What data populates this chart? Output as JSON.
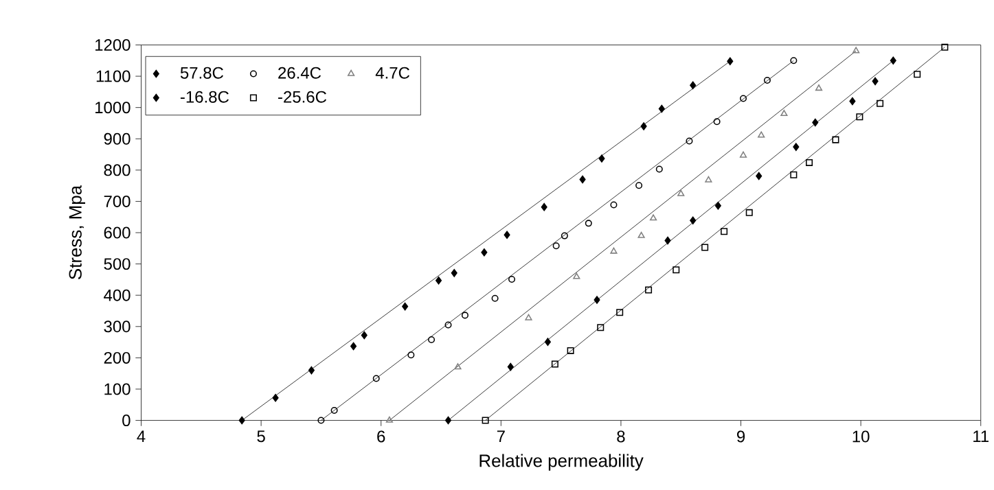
{
  "chart_data": {
    "type": "scatter",
    "xlabel": "Relative permeability",
    "ylabel": "Stress, Mpa",
    "xlim": [
      4,
      11
    ],
    "ylim": [
      0,
      1200
    ],
    "xticks": [
      4,
      5,
      6,
      7,
      8,
      9,
      10,
      11
    ],
    "yticks": [
      0,
      100,
      200,
      300,
      400,
      500,
      600,
      700,
      800,
      900,
      1000,
      1100,
      1200
    ],
    "legend": "top left",
    "series": [
      {
        "name": "57.8C",
        "color": "#000000",
        "marker": "diamond",
        "x": [
          4.84,
          5.12,
          5.42,
          5.77,
          5.86,
          6.2,
          6.48,
          6.61,
          6.86,
          7.05,
          7.36,
          7.68,
          7.84,
          8.19,
          8.34,
          8.6,
          8.91
        ],
        "values": [
          0,
          72,
          160,
          237,
          272,
          364,
          447,
          471,
          537,
          593,
          682,
          770,
          837,
          940,
          996,
          1071,
          1148
        ]
      },
      {
        "name": "26.4C",
        "color": "#000000",
        "marker": "circle",
        "x": [
          5.5,
          5.61,
          5.96,
          6.25,
          6.42,
          6.56,
          6.7,
          6.95,
          7.09,
          7.46,
          7.53,
          7.73,
          7.94,
          8.15,
          8.32,
          8.57,
          8.8,
          9.02,
          9.22,
          9.44
        ],
        "values": [
          0,
          32,
          134,
          209,
          258,
          305,
          336,
          390,
          451,
          558,
          590,
          630,
          689,
          751,
          803,
          893,
          955,
          1029,
          1087,
          1150
        ]
      },
      {
        "name": "4.7C",
        "color": "#808080",
        "marker": "triangle",
        "x": [
          6.07,
          6.64,
          7.23,
          7.63,
          7.94,
          8.17,
          8.27,
          8.5,
          8.73,
          9.02,
          9.17,
          9.36,
          9.65,
          9.96
        ],
        "values": [
          0,
          170,
          327,
          459,
          540,
          590,
          646,
          724,
          768,
          847,
          911,
          980,
          1061,
          1181
        ]
      },
      {
        "name": "-16.8C",
        "color": "#000000",
        "marker": "diamond",
        "x": [
          6.56,
          7.08,
          7.39,
          7.8,
          8.39,
          8.6,
          8.81,
          9.15,
          9.46,
          9.62,
          9.93,
          10.12,
          10.27
        ],
        "values": [
          0,
          171,
          251,
          385,
          575,
          639,
          686,
          781,
          874,
          952,
          1020,
          1084,
          1150
        ]
      },
      {
        "name": "-25.6C",
        "color": "#000000",
        "marker": "square",
        "x": [
          6.87,
          7.45,
          7.58,
          7.83,
          7.99,
          8.23,
          8.46,
          8.7,
          8.86,
          9.07,
          9.44,
          9.57,
          9.79,
          9.99,
          10.16,
          10.47,
          10.7
        ],
        "values": [
          0,
          180,
          223,
          297,
          345,
          417,
          481,
          553,
          604,
          664,
          785,
          824,
          897,
          970,
          1013,
          1106,
          1193
        ]
      },
      {
        "type": "line",
        "color": "#000000",
        "x": [
          4.84,
          8.91
        ],
        "values": [
          0,
          1148
        ]
      },
      {
        "type": "line",
        "color": "#000000",
        "x": [
          5.5,
          9.44
        ],
        "values": [
          0,
          1150
        ]
      },
      {
        "type": "line",
        "color": "#000000",
        "x": [
          6.07,
          9.96
        ],
        "values": [
          0,
          1181
        ]
      },
      {
        "type": "line",
        "color": "#000000",
        "x": [
          6.56,
          10.27
        ],
        "values": [
          0,
          1150
        ]
      },
      {
        "type": "line",
        "color": "#000000",
        "x": [
          6.87,
          10.7
        ],
        "values": [
          0,
          1193
        ]
      }
    ]
  }
}
